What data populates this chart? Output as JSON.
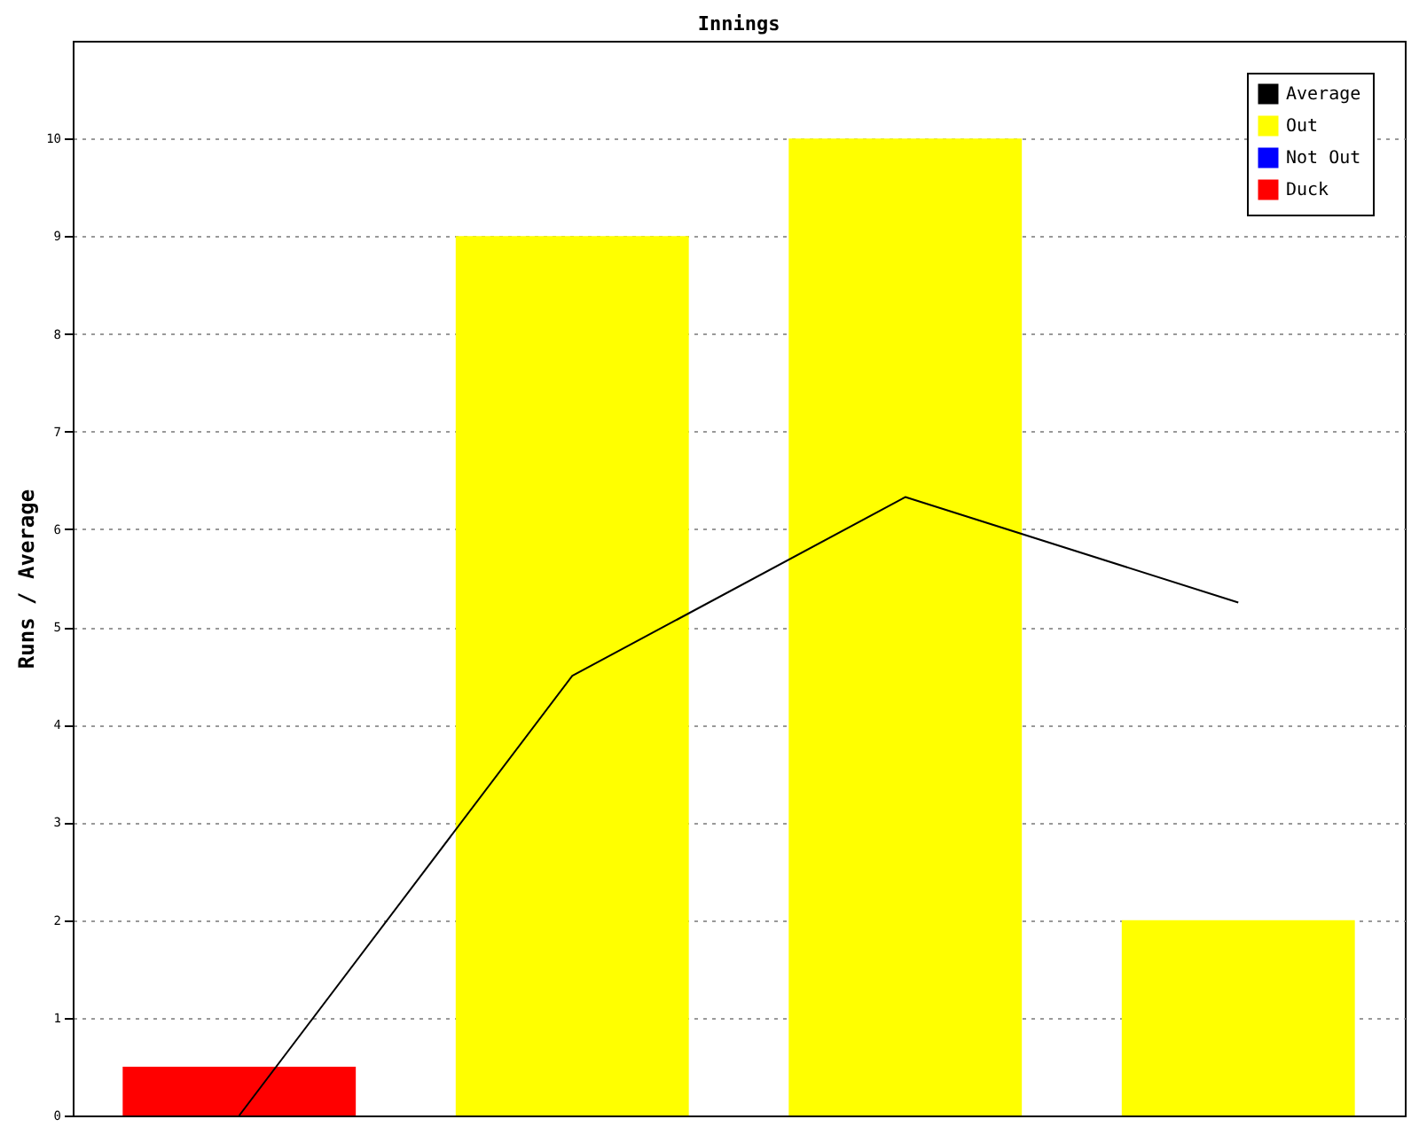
{
  "chart_data": {
    "type": "bar",
    "title": "Innings",
    "ylabel": "Runs / Average",
    "categories": [
      null,
      null,
      null,
      null
    ],
    "series": [
      {
        "name": "Average",
        "type": "line",
        "color": "#000000",
        "values": [
          0,
          4.5,
          6.33,
          5.25
        ]
      },
      {
        "name": "Out",
        "color": "#ffff00",
        "values": [
          null,
          9,
          10,
          2
        ]
      },
      {
        "name": "Not Out",
        "color": "#0000ff",
        "values": [
          null,
          null,
          null,
          null
        ]
      },
      {
        "name": "Duck",
        "color": "#ff0000",
        "values": [
          0.5,
          null,
          null,
          null
        ]
      }
    ],
    "ylim": [
      0,
      11
    ],
    "yticks": [
      0,
      1,
      2,
      3,
      4,
      5,
      6,
      7,
      8,
      9,
      10
    ],
    "grid": "y",
    "legend": "top right",
    "tick_labels": "y",
    "marker": "none",
    "line_style": "solid"
  }
}
